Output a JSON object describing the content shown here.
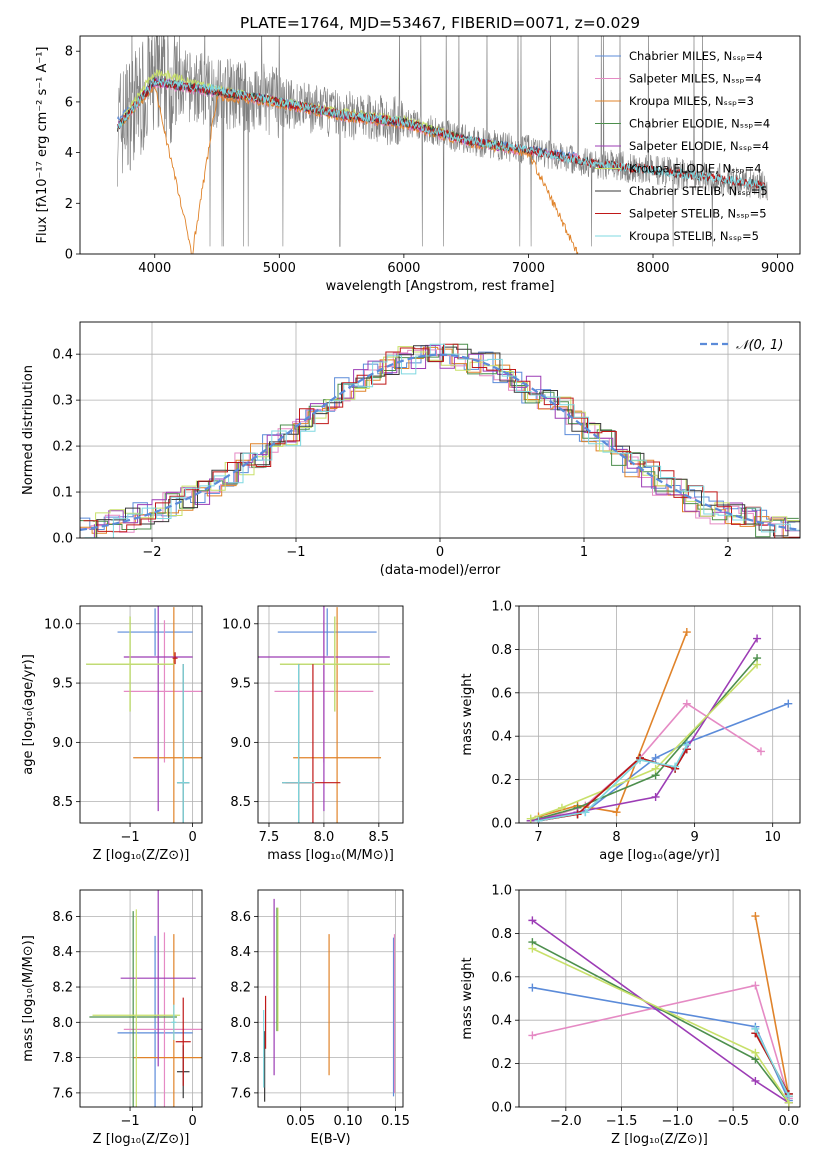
{
  "chart_data": [
    {
      "id": "spectrum",
      "type": "line",
      "title": "PLATE=1764, MJD=53467, FIBERID=0071, z=0.029",
      "xlabel": "wavelength [Angstrom, rest frame]",
      "ylabel": "Flux [fλ10⁻¹⁷ erg cm⁻² s⁻¹ A⁻¹]",
      "xlim": [
        3400,
        9180
      ],
      "ylim": [
        0,
        8.6
      ],
      "xticks": [
        "4000",
        "5000",
        "6000",
        "7000",
        "8000",
        "9000"
      ],
      "yticks": [
        "0",
        "2",
        "4",
        "6",
        "8"
      ],
      "legend_position": "upper-right",
      "series": [
        {
          "name": "Chabrier MILES, Nₛₛₚ=4",
          "color": "#5b8bd9",
          "x": [
            3700,
            4000,
            4500,
            4900,
            5500,
            6000,
            6500,
            7000,
            7400
          ],
          "y": [
            5.2,
            6.8,
            6.4,
            6.1,
            5.5,
            5.2,
            4.5,
            4.1,
            3.9
          ]
        },
        {
          "name": "Salpeter MILES, Nₛₛₚ=4",
          "color": "#e58ac4",
          "x": [
            3700,
            4000,
            4500,
            4900,
            5500,
            6000,
            6500,
            7000,
            7400
          ],
          "y": [
            5.0,
            6.7,
            6.3,
            6.0,
            5.4,
            5.1,
            4.4,
            4.0,
            3.8
          ]
        },
        {
          "name": "Kroupa MILES, Nₛₛₚ=3",
          "color": "#e0832a",
          "x": [
            3700,
            4000,
            4300,
            4500,
            4900,
            5500,
            6000,
            6500,
            7000,
            7400
          ],
          "y": [
            5.0,
            6.6,
            0.0,
            6.2,
            6.0,
            5.4,
            5.1,
            4.4,
            4.0,
            0.0
          ]
        },
        {
          "name": "Chabrier ELODIE, Nₛₛₚ=4",
          "color": "#4d8f4d",
          "x": [
            3700,
            4000,
            4500,
            4900,
            5500,
            6000,
            6500,
            6800
          ],
          "y": [
            5.0,
            6.8,
            6.4,
            6.1,
            5.5,
            5.2,
            4.5,
            4.2
          ]
        },
        {
          "name": "Salpeter ELODIE, Nₛₛₚ=4",
          "color": "#9c3cb5",
          "x": [
            3700,
            4000,
            4500,
            4900,
            5500,
            6000,
            6500,
            6800
          ],
          "y": [
            5.0,
            6.8,
            6.4,
            6.1,
            5.5,
            5.2,
            4.5,
            4.2
          ]
        },
        {
          "name": "Kroupa ELODIE, Nₛₛₚ=4",
          "color": "#c8e06a",
          "x": [
            3700,
            4000,
            4500,
            4900,
            5500,
            6000,
            6500,
            6800
          ],
          "y": [
            5.0,
            7.2,
            6.5,
            6.1,
            5.6,
            5.3,
            4.5,
            4.2
          ]
        },
        {
          "name": "Chabrier STELIB, Nₛₛₚ=5",
          "color": "#3a3a3a",
          "x": [
            3700,
            4000,
            4500,
            4900,
            5500,
            6000,
            6500,
            7000,
            7500,
            8000,
            8500,
            8900
          ],
          "y": [
            5.0,
            6.8,
            6.4,
            6.1,
            5.5,
            5.2,
            4.5,
            4.1,
            3.6,
            3.3,
            3.0,
            2.7
          ]
        },
        {
          "name": "Salpeter STELIB, Nₛₛₚ=5",
          "color": "#c01818",
          "x": [
            3700,
            4000,
            4500,
            4900,
            5500,
            6000,
            6500,
            7000,
            7500,
            8000,
            8500,
            8900
          ],
          "y": [
            5.0,
            6.8,
            6.4,
            6.1,
            5.5,
            5.2,
            4.5,
            4.1,
            3.6,
            3.3,
            3.0,
            2.7
          ]
        },
        {
          "name": "Kroupa STELIB, Nₛₛₚ=5",
          "color": "#7fd8e0",
          "x": [
            3700,
            4000,
            4500,
            4900,
            5500,
            6000,
            6500,
            7000,
            7500,
            8000,
            8500,
            8900
          ],
          "y": [
            5.0,
            6.8,
            6.5,
            6.1,
            5.5,
            5.2,
            4.5,
            4.1,
            3.6,
            3.3,
            3.0,
            2.7
          ]
        }
      ]
    },
    {
      "id": "residuals",
      "type": "line",
      "title": "",
      "xlabel": "(data-model)/error",
      "ylabel": "Normed distribution",
      "xlim": [
        -2.5,
        2.5
      ],
      "ylim": [
        0,
        0.47
      ],
      "xticks": [
        "−2",
        "−1",
        "0",
        "1",
        "2"
      ],
      "yticks": [
        "0.0",
        "0.1",
        "0.2",
        "0.3",
        "0.4"
      ],
      "grid": true,
      "legend_position": "upper-right",
      "legend": "𝒩(0, 1)",
      "reference_curve": {
        "type": "normal",
        "mean": 0,
        "sigma": 1,
        "color": "#5b8bd9"
      }
    },
    {
      "id": "age-vs-Z",
      "type": "scatter",
      "xlabel": "Z [log₁₀(Z/Z⊙)]",
      "ylabel": "age  [log₁₀(age/yr)]",
      "xlim": [
        -1.8,
        0.15
      ],
      "ylim": [
        8.32,
        10.15
      ],
      "xticks": [
        "−1",
        "0"
      ],
      "yticks": [
        "8.5",
        "9.0",
        "9.5",
        "10.0"
      ],
      "grid": true,
      "points": [
        {
          "color": "#5b8bd9",
          "x": -0.6,
          "xerr": 0.6,
          "y": 9.93,
          "yerr": 0.2
        },
        {
          "color": "#e58ac4",
          "x": -0.45,
          "xerr": 0.65,
          "y": 9.43,
          "yerr": 0.6
        },
        {
          "color": "#e0832a",
          "x": -0.3,
          "xerr": 0.65,
          "y": 8.87,
          "yerr": 1.27
        },
        {
          "color": "#4d8f4d",
          "x": -1.0,
          "xerr": 0.7,
          "y": 9.66,
          "yerr": 0.4
        },
        {
          "color": "#9c3cb5",
          "x": -0.55,
          "xerr": 0.55,
          "y": 9.72,
          "yerr": 1.3
        },
        {
          "color": "#c8e06a",
          "x": -1.0,
          "xerr": 0.7,
          "y": 9.66,
          "yerr": 0.4
        },
        {
          "color": "#3a3a3a",
          "x": -0.15,
          "xerr": 0.1,
          "y": 8.66,
          "yerr": 1.0
        },
        {
          "color": "#c01818",
          "x": -0.28,
          "xerr": 0.04,
          "y": 9.71,
          "yerr": 0.05
        },
        {
          "color": "#7fd8e0",
          "x": -0.15,
          "xerr": 0.1,
          "y": 8.66,
          "yerr": 1.0
        }
      ]
    },
    {
      "id": "age-vs-mass",
      "type": "scatter",
      "xlabel": "mass [log₁₀(M/M⊙)]",
      "ylabel": "",
      "xlim": [
        7.4,
        8.72
      ],
      "ylim": [
        8.32,
        10.15
      ],
      "xticks": [
        "7.5",
        "8.0",
        "8.5"
      ],
      "yticks": [
        "8.5",
        "9.0",
        "9.5",
        "10.0"
      ],
      "grid": true,
      "points": [
        {
          "color": "#5b8bd9",
          "x": 8.03,
          "xerr": 0.45,
          "y": 9.93,
          "yerr": 0.2
        },
        {
          "color": "#e58ac4",
          "x": 8.0,
          "xerr": 0.45,
          "y": 9.43,
          "yerr": 0.6
        },
        {
          "color": "#e0832a",
          "x": 8.12,
          "xerr": 0.4,
          "y": 8.87,
          "yerr": 1.27
        },
        {
          "color": "#4d8f4d",
          "x": 8.1,
          "xerr": 0.5,
          "y": 9.66,
          "yerr": 0.4
        },
        {
          "color": "#9c3cb5",
          "x": 8.0,
          "xerr": 0.6,
          "y": 9.72,
          "yerr": 1.3
        },
        {
          "color": "#c8e06a",
          "x": 8.1,
          "xerr": 0.5,
          "y": 9.66,
          "yerr": 0.4
        },
        {
          "color": "#3a3a3a",
          "x": 7.77,
          "xerr": 0.15,
          "y": 8.66,
          "yerr": 1.0
        },
        {
          "color": "#c01818",
          "x": 7.9,
          "xerr": 0.25,
          "y": 8.66,
          "yerr": 1.0
        },
        {
          "color": "#7fd8e0",
          "x": 7.77,
          "xerr": 0.15,
          "y": 8.66,
          "yerr": 1.0
        }
      ]
    },
    {
      "id": "weight-vs-age",
      "type": "line",
      "xlabel": "age  [log₁₀(age/yr)]",
      "ylabel": "mass weight",
      "xlim": [
        6.75,
        10.35
      ],
      "ylim": [
        0,
        1.0
      ],
      "xticks": [
        "7",
        "8",
        "9",
        "10"
      ],
      "yticks": [
        "0.0",
        "0.2",
        "0.4",
        "0.6",
        "0.8",
        "1.0"
      ],
      "grid": true,
      "series": [
        {
          "color": "#5b8bd9",
          "x": [
            7.0,
            7.6,
            8.5,
            8.9,
            10.2
          ],
          "y": [
            0.01,
            0.05,
            0.3,
            0.37,
            0.55
          ]
        },
        {
          "color": "#e58ac4",
          "x": [
            7.0,
            7.6,
            8.3,
            8.9,
            9.85
          ],
          "y": [
            0.01,
            0.08,
            0.3,
            0.55,
            0.33
          ]
        },
        {
          "color": "#e0832a",
          "x": [
            7.0,
            7.5,
            8.0,
            8.9
          ],
          "y": [
            0.03,
            0.08,
            0.05,
            0.88
          ]
        },
        {
          "color": "#4d8f4d",
          "x": [
            6.9,
            7.5,
            8.5,
            9.8
          ],
          "y": [
            0.01,
            0.07,
            0.22,
            0.76
          ]
        },
        {
          "color": "#9c3cb5",
          "x": [
            6.9,
            7.5,
            8.5,
            9.8
          ],
          "y": [
            0.01,
            0.05,
            0.12,
            0.85
          ]
        },
        {
          "color": "#c8e06a",
          "x": [
            6.9,
            7.3,
            8.5,
            9.8
          ],
          "y": [
            0.02,
            0.07,
            0.25,
            0.73
          ]
        },
        {
          "color": "#3a3a3a",
          "x": [
            7.0,
            7.5,
            8.3,
            8.75,
            8.9
          ],
          "y": [
            0.01,
            0.04,
            0.3,
            0.25,
            0.34
          ]
        },
        {
          "color": "#c01818",
          "x": [
            7.0,
            7.5,
            8.3,
            8.75,
            8.9
          ],
          "y": [
            0.01,
            0.04,
            0.3,
            0.25,
            0.34
          ]
        },
        {
          "color": "#7fd8e0",
          "x": [
            7.0,
            7.6,
            8.3,
            8.75,
            8.9
          ],
          "y": [
            0.01,
            0.05,
            0.29,
            0.26,
            0.36
          ]
        }
      ]
    },
    {
      "id": "mass-vs-Z",
      "type": "scatter",
      "xlabel": "Z [log₁₀(Z/Z⊙)]",
      "ylabel": "mass [log₁₀(M/M⊙)]",
      "xlim": [
        -1.8,
        0.15
      ],
      "ylim": [
        7.52,
        8.75
      ],
      "xticks": [
        "−1",
        "0"
      ],
      "yticks": [
        "7.6",
        "7.8",
        "8.0",
        "8.2",
        "8.4",
        "8.6"
      ],
      "grid": true,
      "points": [
        {
          "color": "#5b8bd9",
          "x": -0.6,
          "xerr": 0.6,
          "y": 7.94,
          "yerr": 0.55
        },
        {
          "color": "#e58ac4",
          "x": -0.45,
          "xerr": 0.65,
          "y": 7.96,
          "yerr": 0.55
        },
        {
          "color": "#e0832a",
          "x": -0.3,
          "xerr": 0.65,
          "y": 7.8,
          "yerr": 0.7
        },
        {
          "color": "#4d8f4d",
          "x": -0.95,
          "xerr": 0.7,
          "y": 8.03,
          "yerr": 0.6
        },
        {
          "color": "#9c3cb5",
          "x": -0.55,
          "xerr": 0.6,
          "y": 8.25,
          "yerr": 0.5
        },
        {
          "color": "#c8e06a",
          "x": -0.9,
          "xerr": 0.7,
          "y": 8.04,
          "yerr": 0.6
        },
        {
          "color": "#3a3a3a",
          "x": -0.15,
          "xerr": 0.1,
          "y": 7.72,
          "yerr": 0.15
        },
        {
          "color": "#c01818",
          "x": -0.15,
          "xerr": 0.12,
          "y": 7.89,
          "yerr": 0.25
        },
        {
          "color": "#7fd8e0",
          "x": -0.3,
          "xerr": 0.04,
          "y": 8.0,
          "yerr": 0.1
        }
      ]
    },
    {
      "id": "mass-vs-ebv",
      "type": "scatter",
      "xlabel": "E(B-V)",
      "ylabel": "",
      "xlim": [
        0.005,
        0.158
      ],
      "ylim": [
        7.52,
        8.75
      ],
      "xticks": [
        "0.05",
        "0.10",
        "0.15"
      ],
      "yticks": [
        "7.6",
        "7.8",
        "8.0",
        "8.2",
        "8.4",
        "8.6"
      ],
      "grid": true,
      "points": [
        {
          "color": "#5b8bd9",
          "x": 0.148,
          "xerr": 0,
          "y": 8.03,
          "yerr": 0.45
        },
        {
          "color": "#e58ac4",
          "x": 0.149,
          "xerr": 0,
          "y": 8.05,
          "yerr": 0.45
        },
        {
          "color": "#e0832a",
          "x": 0.08,
          "xerr": 0,
          "y": 8.1,
          "yerr": 0.4
        },
        {
          "color": "#4d8f4d",
          "x": 0.025,
          "xerr": 0,
          "y": 8.3,
          "yerr": 0.35
        },
        {
          "color": "#9c3cb5",
          "x": 0.022,
          "xerr": 0,
          "y": 8.2,
          "yerr": 0.5
        },
        {
          "color": "#c8e06a",
          "x": 0.026,
          "xerr": 0,
          "y": 8.3,
          "yerr": 0.35
        },
        {
          "color": "#3a3a3a",
          "x": 0.012,
          "xerr": 0,
          "y": 7.75,
          "yerr": 0.2
        },
        {
          "color": "#c01818",
          "x": 0.013,
          "xerr": 0,
          "y": 8.0,
          "yerr": 0.15
        },
        {
          "color": "#7fd8e0",
          "x": 0.011,
          "xerr": 0,
          "y": 7.85,
          "yerr": 0.22
        }
      ]
    },
    {
      "id": "weight-vs-Z",
      "type": "line",
      "xlabel": "Z [log₁₀(Z/Z⊙)]",
      "ylabel": "mass weight",
      "xlim": [
        -2.42,
        0.1
      ],
      "ylim": [
        0,
        1.0
      ],
      "xticks": [
        "−2.0",
        "−1.5",
        "−1.0",
        "−0.5",
        "0.0"
      ],
      "yticks": [
        "0.0",
        "0.2",
        "0.4",
        "0.6",
        "0.8",
        "1.0"
      ],
      "grid": true,
      "series": [
        {
          "color": "#5b8bd9",
          "x": [
            -2.3,
            -0.3,
            0.0
          ],
          "y": [
            0.55,
            0.37,
            0.03
          ]
        },
        {
          "color": "#e58ac4",
          "x": [
            -2.3,
            -0.3,
            0.0
          ],
          "y": [
            0.33,
            0.56,
            0.04
          ]
        },
        {
          "color": "#e0832a",
          "x": [
            -0.3,
            0.0
          ],
          "y": [
            0.88,
            0.05
          ]
        },
        {
          "color": "#4d8f4d",
          "x": [
            -2.3,
            -0.3,
            0.0
          ],
          "y": [
            0.76,
            0.22,
            0.02
          ]
        },
        {
          "color": "#9c3cb5",
          "x": [
            -2.3,
            -0.3,
            0.0
          ],
          "y": [
            0.86,
            0.12,
            0.02
          ]
        },
        {
          "color": "#c8e06a",
          "x": [
            -2.3,
            -0.3,
            0.0
          ],
          "y": [
            0.73,
            0.25,
            0.02
          ]
        },
        {
          "color": "#3a3a3a",
          "x": [
            -0.3,
            0.0
          ],
          "y": [
            0.34,
            0.06
          ]
        },
        {
          "color": "#c01818",
          "x": [
            -0.3,
            0.0
          ],
          "y": [
            0.34,
            0.06
          ]
        },
        {
          "color": "#7fd8e0",
          "x": [
            -0.3,
            0.0
          ],
          "y": [
            0.36,
            0.05
          ]
        }
      ]
    }
  ]
}
